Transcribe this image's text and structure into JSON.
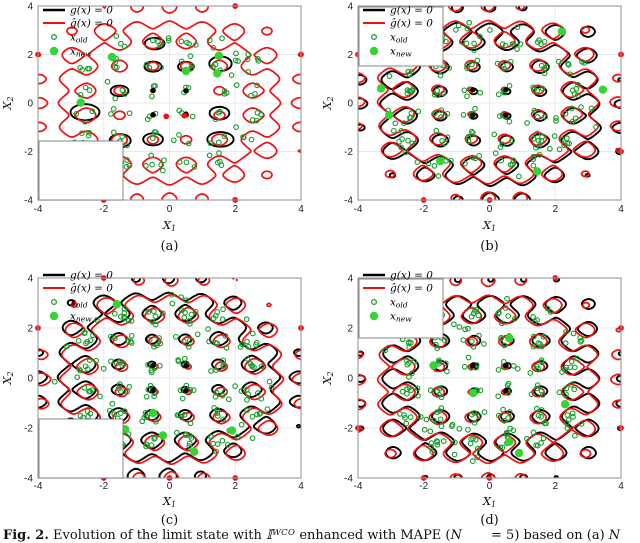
{
  "figure": {
    "caption": {
      "fig_label": "Fig. 2.",
      "text_before_symbol": "Evolution of the limit state with",
      "symbol": "𝕀",
      "symbol_sup": "WCO",
      "text_after_symbol": "enhanced with MAPE (",
      "var1": "N",
      "eq1": "= 5) based on (a)",
      "var2": "N",
      "eq2": "="
    },
    "legend": [
      {
        "label": "g(x) = 0",
        "sub": "",
        "style": "line",
        "color": "#000000"
      },
      {
        "label": "ĝ(x) = 0",
        "sub": "",
        "style": "line",
        "color": "#f11010"
      },
      {
        "label": "x",
        "sub": "old",
        "style": "open-circle",
        "color": "#169d2c"
      },
      {
        "label": "x",
        "sub": "new",
        "style": "filled-circle",
        "color": "#35d435"
      }
    ],
    "colors": {
      "true_ls": "#000000",
      "surrogate_ls": "#f11010",
      "x_old": "#169d2c",
      "x_new": "#35d435",
      "red_dot": "#f11010",
      "grid": "#e8e8e8",
      "frame": "#999999",
      "tick_text": "#222222"
    },
    "scatter_cluster_centers": [
      [
        -0.5,
        0.5
      ],
      [
        0.5,
        0.5
      ],
      [
        -0.5,
        -0.5
      ],
      [
        0.5,
        -0.5
      ],
      [
        -1.5,
        0.5
      ],
      [
        1.5,
        0.5
      ],
      [
        -1.5,
        -0.5
      ],
      [
        1.5,
        -0.5
      ],
      [
        -0.5,
        1.5
      ],
      [
        0.5,
        1.5
      ],
      [
        -0.5,
        -1.5
      ],
      [
        0.5,
        -1.5
      ],
      [
        -1.5,
        1.5
      ],
      [
        1.5,
        1.5
      ],
      [
        -1.5,
        -1.5
      ],
      [
        1.5,
        -1.5
      ],
      [
        -2.5,
        0.5
      ],
      [
        2.5,
        0.5
      ],
      [
        -2.5,
        -0.5
      ],
      [
        2.5,
        -0.5
      ],
      [
        -0.5,
        2.5
      ],
      [
        0.5,
        2.5
      ],
      [
        -0.5,
        -2.5
      ],
      [
        0.5,
        -2.5
      ],
      [
        -2.5,
        1.5
      ],
      [
        2.5,
        1.5
      ],
      [
        -2.5,
        -1.5
      ],
      [
        2.5,
        -1.5
      ],
      [
        -1.5,
        2.5
      ],
      [
        1.5,
        2.5
      ],
      [
        -1.5,
        -2.5
      ],
      [
        1.5,
        -2.5
      ]
    ]
  },
  "chart_data": [
    {
      "id": "a",
      "label": "(a)",
      "type": "contour-scatter",
      "xlabel": "X",
      "xlabel_sub": "1",
      "ylabel": "X",
      "ylabel_sub": "2",
      "xlim": [
        -4,
        4
      ],
      "ylim": [
        -4,
        4
      ],
      "xticks": [
        -4,
        -2,
        0,
        2,
        4
      ],
      "yticks": [
        -4,
        -2,
        0,
        2,
        4
      ],
      "grid_lines": [
        -2,
        0,
        2
      ],
      "legend_position": "bottom-left",
      "true_limit_state": {
        "render": "ellipses",
        "ellipses": [
          [
            -0.45,
            2.45,
            0.3,
            0.24
          ],
          [
            0.5,
            1.5,
            0.24,
            0.2
          ],
          [
            -0.5,
            1.5,
            0.26,
            0.21
          ],
          [
            1.55,
            1.62,
            0.34,
            0.3
          ],
          [
            -1.52,
            0.5,
            0.27,
            0.22
          ],
          [
            -2.57,
            -0.38,
            0.44,
            0.33
          ],
          [
            1.52,
            -0.42,
            0.3,
            0.26
          ],
          [
            -1.5,
            -1.55,
            0.32,
            0.27
          ],
          [
            -0.5,
            -1.5,
            0.3,
            0.25
          ],
          [
            1.55,
            -1.5,
            0.4,
            0.3
          ]
        ]
      },
      "surrogate_limit_state": {
        "render": "contour",
        "C": 10,
        "phx": 0,
        "phy": 0,
        "amp": 0,
        "kx": 0,
        "ky": 0,
        "px": 0,
        "py": 0
      },
      "x_old": {
        "seed": 7,
        "points_per_cluster": 3,
        "cluster_spread": 0.24,
        "ring_count": 26,
        "ring_rmin": 2.0,
        "ring_rmax": 3.4
      },
      "x_new": [
        [
          -1.75,
          1.9
        ],
        [
          1.5,
          1.95
        ],
        [
          -2.7,
          0.02
        ],
        [
          0.5,
          1.32
        ],
        [
          1.45,
          1.22
        ]
      ],
      "red_dots": [
        [
          -4,
          2
        ],
        [
          2,
          4
        ],
        [
          4,
          2
        ],
        [
          2,
          -4
        ],
        [
          -2,
          -4
        ],
        [
          -0.1,
          -0.55
        ],
        [
          0.45,
          -0.52
        ]
      ],
      "black_dots": [
        [
          -0.5,
          0.52
        ],
        [
          0.5,
          0.5
        ],
        [
          0.5,
          -0.45
        ],
        [
          -0.5,
          -0.48
        ]
      ]
    },
    {
      "id": "b",
      "label": "(b)",
      "type": "contour-scatter",
      "xlabel": "X",
      "xlabel_sub": "1",
      "ylabel": "X",
      "ylabel_sub": "2",
      "xlim": [
        -4,
        4
      ],
      "ylim": [
        -4,
        4
      ],
      "xticks": [
        -4,
        -2,
        0,
        2,
        4
      ],
      "yticks": [
        -4,
        -2,
        0,
        2,
        4
      ],
      "grid_lines": [
        -2,
        0,
        2
      ],
      "legend_position": "top-left",
      "true_limit_state": {
        "render": "contour",
        "C": 9.2,
        "phx": -0.02,
        "phy": 0.03,
        "amp": 2.6,
        "kx": 1.15,
        "ky": 1.35,
        "px": 0.9,
        "py": 2.1
      },
      "surrogate_limit_state": {
        "render": "contour",
        "C": 9.55,
        "phx": 0.05,
        "phy": -0.04,
        "amp": 1.2,
        "kx": 1.3,
        "ky": 1.1,
        "px": 0.4,
        "py": 1.2
      },
      "x_old": {
        "seed": 11,
        "points_per_cluster": 4,
        "cluster_spread": 0.24,
        "ring_count": 42,
        "ring_rmin": 2.0,
        "ring_rmax": 3.4
      },
      "x_new": [
        [
          -3.3,
          0.6
        ],
        [
          -3.05,
          -0.5
        ],
        [
          3.45,
          0.55
        ],
        [
          -1.5,
          -2.4
        ],
        [
          1.45,
          -2.82
        ],
        [
          2.2,
          2.95
        ]
      ],
      "red_dots": [
        [
          -4,
          2
        ],
        [
          4,
          2
        ],
        [
          4,
          -2
        ],
        [
          0,
          -4
        ],
        [
          -2,
          -4
        ]
      ],
      "black_dots": [
        [
          -0.5,
          0.55
        ],
        [
          0.5,
          0.55
        ],
        [
          -0.5,
          -0.5
        ],
        [
          0.5,
          -0.5
        ]
      ]
    },
    {
      "id": "c",
      "label": "(c)",
      "type": "contour-scatter",
      "xlabel": "X",
      "xlabel_sub": "1",
      "ylabel": "X",
      "ylabel_sub": "2",
      "xlim": [
        -4,
        4
      ],
      "ylim": [
        -4,
        4
      ],
      "xticks": [
        -4,
        -2,
        0,
        2,
        4
      ],
      "yticks": [
        -4,
        -2,
        0,
        2,
        4
      ],
      "grid_lines": [
        -2,
        0,
        2
      ],
      "legend_position": "bottom-left",
      "true_limit_state": {
        "render": "contour",
        "C": 9.25,
        "phx": 0.03,
        "phy": -0.04,
        "amp": 3.0,
        "kx": 0.8,
        "ky": 1.05,
        "px": 2.3,
        "py": 0.8
      },
      "surrogate_limit_state": {
        "render": "contour",
        "C": 9.6,
        "phx": -0.06,
        "phy": 0.05,
        "amp": 1.6,
        "kx": 0.9,
        "ky": 1.2,
        "px": 1.8,
        "py": 0.3
      },
      "x_old": {
        "seed": 23,
        "points_per_cluster": 5,
        "cluster_spread": 0.24,
        "ring_count": 40,
        "ring_rmin": 2.0,
        "ring_rmax": 3.5
      },
      "x_new": [
        [
          -1.6,
          2.95
        ],
        [
          -0.5,
          -1.4
        ],
        [
          0.75,
          -2.95
        ],
        [
          1.9,
          -2.1
        ],
        [
          -0.2,
          -2.3
        ],
        [
          -1.35,
          -2.05
        ]
      ],
      "red_dots": [
        [
          -4,
          2
        ],
        [
          -2,
          4
        ],
        [
          4,
          2
        ],
        [
          2,
          -4
        ],
        [
          -2,
          -4
        ],
        [
          0,
          -4
        ]
      ],
      "black_dots": [
        [
          -0.5,
          0.5
        ],
        [
          0.5,
          0.5
        ],
        [
          -0.5,
          -0.5
        ],
        [
          0.5,
          -0.5
        ]
      ]
    },
    {
      "id": "d",
      "label": "(d)",
      "type": "contour-scatter",
      "xlabel": "X",
      "xlabel_sub": "1",
      "ylabel": "X",
      "ylabel_sub": "2",
      "xlim": [
        -4,
        4
      ],
      "ylim": [
        -4,
        4
      ],
      "xticks": [
        -4,
        -2,
        0,
        2,
        4
      ],
      "yticks": [
        -4,
        -2,
        0,
        2,
        4
      ],
      "grid_lines": [
        -2,
        0,
        2
      ],
      "legend_position": "top-left",
      "true_limit_state": {
        "render": "contour",
        "C": 9.2,
        "phx": -0.04,
        "phy": 0.02,
        "amp": 2.8,
        "kx": 1.0,
        "ky": 0.9,
        "px": 1.5,
        "py": 2.8
      },
      "surrogate_limit_state": {
        "render": "contour",
        "C": 9.5,
        "phx": 0.04,
        "phy": 0.06,
        "amp": 1.4,
        "kx": 1.1,
        "ky": 0.8,
        "px": 2.5,
        "py": 1.6
      },
      "x_old": {
        "seed": 31,
        "points_per_cluster": 5,
        "cluster_spread": 0.24,
        "ring_count": 40,
        "ring_rmin": 2.0,
        "ring_rmax": 3.5
      },
      "x_new": [
        [
          -1.7,
          0.5
        ],
        [
          0.6,
          1.6
        ],
        [
          -0.5,
          -0.6
        ],
        [
          2.3,
          -1.05
        ],
        [
          0.6,
          -2.55
        ],
        [
          0.9,
          -3.0
        ]
      ],
      "red_dots": [
        [
          4,
          2
        ],
        [
          4,
          -2
        ],
        [
          -4,
          -2
        ],
        [
          -2,
          -4
        ],
        [
          0,
          -4
        ],
        [
          2,
          4
        ]
      ],
      "black_dots": [
        [
          -0.5,
          0.5
        ],
        [
          0.5,
          0.5
        ],
        [
          -0.5,
          -0.5
        ],
        [
          0.5,
          -0.5
        ]
      ]
    }
  ]
}
